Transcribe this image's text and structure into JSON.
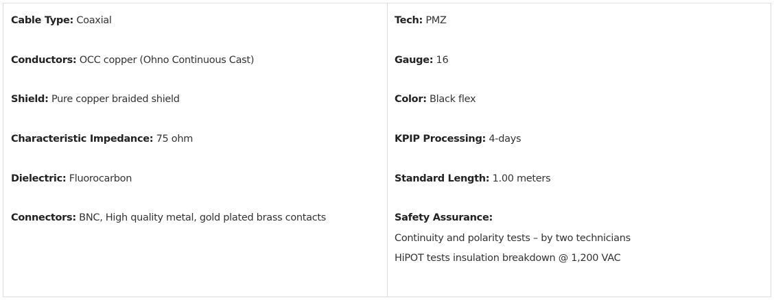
{
  "left_column": [
    {
      "label": "Cable Type",
      "value": "Coaxial"
    },
    {
      "label": "Conductors",
      "value": "OCC copper (Ohno Continuous Cast)"
    },
    {
      "label": "Shield",
      "value": "Pure copper braided shield"
    },
    {
      "label": "Characteristic Impedance",
      "value": "75 ohm"
    },
    {
      "label": "Dielectric",
      "value": "Fluorocarbon"
    },
    {
      "label": "Connectors",
      "value": "BNC, High quality metal, gold plated brass contacts"
    }
  ],
  "right_column": [
    {
      "label": "Tech",
      "value": "PMZ"
    },
    {
      "label": "Gauge",
      "value": "16"
    },
    {
      "label": "Color",
      "value": "Black flex"
    },
    {
      "label": "KPIP Processing",
      "value": "4-days"
    },
    {
      "label": "Standard Length",
      "value": "1.00 meters"
    },
    {
      "label": "Safety Assurance",
      "value": ""
    }
  ],
  "safety_lines": [
    "Continuity and polarity tests – by two technicians",
    "HiPOT tests insulation breakdown @ 1,200 VAC"
  ]
}
